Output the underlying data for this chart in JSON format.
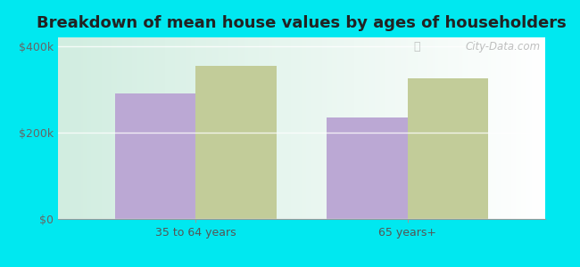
{
  "title": "Breakdown of mean house values by ages of householders",
  "categories": [
    "35 to 64 years",
    "65 years+"
  ],
  "series": {
    "Chickaloon": [
      290000,
      235000
    ],
    "Alaska": [
      355000,
      325000
    ]
  },
  "chickaloon_color": "#bba8d4",
  "alaska_color": "#c2cc99",
  "background_color": "#00e8f0",
  "plot_bg_color_tl": "#d6ede0",
  "plot_bg_color_tr": "#eaf5ee",
  "plot_bg_color_br": "#f5faf5",
  "ylim": [
    0,
    420000
  ],
  "yticks": [
    0,
    200000,
    400000
  ],
  "ytick_labels": [
    "$0",
    "$200k",
    "$400k"
  ],
  "bar_width": 0.38,
  "title_fontsize": 13,
  "legend_fontsize": 10,
  "tick_fontsize": 9,
  "watermark_text": "City-Data.com"
}
